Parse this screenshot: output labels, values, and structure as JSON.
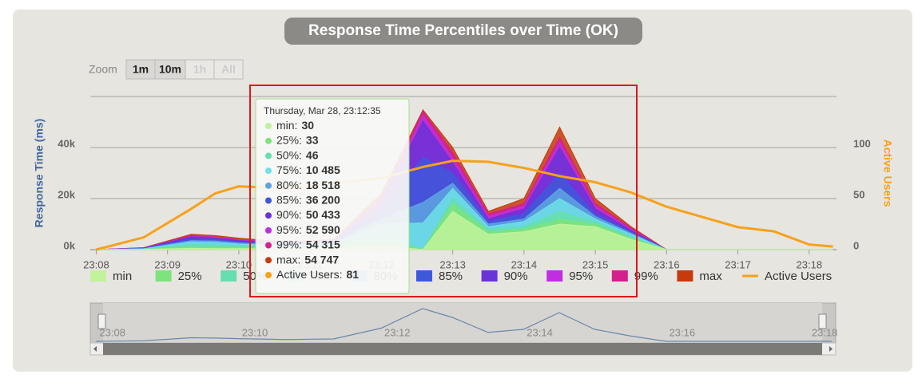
{
  "chart_data": {
    "type": "area",
    "title": "Response Time Percentiles over Time (OK)",
    "y_label": "Response Time (ms)",
    "y2_label": "Active Users",
    "x": [
      "23:08:00",
      "23:08:40",
      "23:09:20",
      "23:09:40",
      "23:10:00",
      "23:10:40",
      "23:11:20",
      "23:12:00",
      "23:12:35",
      "23:13:00",
      "23:13:30",
      "23:14:00",
      "23:14:30",
      "23:15:00",
      "23:15:30",
      "23:16:00",
      "23:16:30",
      "23:17:00",
      "23:17:30",
      "23:18:00",
      "23:18:20"
    ],
    "xlim": [
      "23:07:55",
      "23:18:23"
    ],
    "xticks": [
      "23:08",
      "23:09",
      "23:10",
      "23:11",
      "23:12",
      "23:13",
      "23:14",
      "23:15",
      "23:16",
      "23:17",
      "23:18"
    ],
    "ylim": [
      0,
      60000
    ],
    "yticks": [
      {
        "value": 0,
        "label": "0k"
      },
      {
        "value": 20000,
        "label": "20k"
      },
      {
        "value": 40000,
        "label": "40k"
      },
      60000
    ],
    "y2lim": [
      0,
      150
    ],
    "y2ticks": [
      0,
      50,
      100
    ],
    "grid": true,
    "series": [
      {
        "name": "min",
        "color": "#c2f39a",
        "values": [
          0,
          100,
          500,
          400,
          400,
          300,
          500,
          1500,
          30,
          15000,
          6000,
          7000,
          10000,
          9000,
          4000,
          0,
          0,
          0,
          0,
          0,
          0
        ]
      },
      {
        "name": "25%",
        "color": "#7de37c",
        "values": [
          0,
          150,
          1000,
          900,
          800,
          600,
          900,
          3000,
          33,
          18000,
          7000,
          8000,
          12000,
          10000,
          4500,
          0,
          0,
          0,
          0,
          0,
          0
        ]
      },
      {
        "name": "50%",
        "color": "#65dfae",
        "values": [
          0,
          200,
          2000,
          1800,
          1500,
          1000,
          1500,
          6000,
          46,
          20000,
          8000,
          9000,
          15000,
          11000,
          5000,
          0,
          0,
          0,
          0,
          0,
          0
        ]
      },
      {
        "name": "75%",
        "color": "#6ee0e6",
        "values": [
          0,
          300,
          3000,
          2800,
          2200,
          1500,
          2200,
          10000,
          10485,
          24000,
          9000,
          11000,
          20000,
          12000,
          6000,
          0,
          0,
          0,
          0,
          0,
          0
        ]
      },
      {
        "name": "80%",
        "color": "#5ea5df",
        "values": [
          0,
          400,
          3500,
          3400,
          2600,
          1800,
          2600,
          12000,
          18518,
          26000,
          10000,
          12000,
          24000,
          13000,
          6500,
          0,
          0,
          0,
          0,
          0,
          0
        ]
      },
      {
        "name": "85%",
        "color": "#3e58da",
        "values": [
          0,
          500,
          4200,
          4000,
          3000,
          2200,
          3000,
          15000,
          36200,
          30000,
          11000,
          14000,
          30000,
          14000,
          7000,
          0,
          0,
          0,
          0,
          0,
          0
        ]
      },
      {
        "name": "90%",
        "color": "#6a33d8",
        "values": [
          0,
          600,
          5000,
          4500,
          3500,
          2500,
          3400,
          18000,
          50433,
          34000,
          12000,
          16000,
          40000,
          16000,
          7500,
          0,
          0,
          0,
          0,
          0,
          0
        ]
      },
      {
        "name": "95%",
        "color": "#c02fdf",
        "values": [
          0,
          650,
          5200,
          4800,
          3800,
          2600,
          3600,
          19000,
          52590,
          36000,
          13000,
          17000,
          42000,
          17000,
          8000,
          0,
          0,
          0,
          0,
          0,
          0
        ]
      },
      {
        "name": "99%",
        "color": "#d3208e",
        "values": [
          0,
          700,
          5500,
          5000,
          4000,
          2800,
          3800,
          20000,
          54315,
          38000,
          14000,
          18000,
          44000,
          18000,
          8500,
          0,
          0,
          0,
          0,
          0,
          0
        ]
      },
      {
        "name": "max",
        "color": "#c53b0b",
        "values": [
          0,
          800,
          6000,
          5500,
          4500,
          3000,
          4000,
          22000,
          54747,
          40000,
          15000,
          20000,
          48000,
          20000,
          9000,
          0,
          0,
          0,
          0,
          0,
          0
        ]
      },
      {
        "name": "Active Users",
        "color": "#f7a11a",
        "axis": "y2",
        "values": [
          0,
          12,
          40,
          55,
          62,
          60,
          65,
          70,
          81,
          87,
          86,
          80,
          72,
          66,
          56,
          42,
          32,
          22,
          18,
          5,
          3
        ]
      }
    ]
  },
  "zoom": {
    "label": "Zoom",
    "buttons": [
      "1m",
      "10m",
      "1h",
      "All"
    ]
  },
  "tooltip": {
    "title": "Thursday, Mar 28, 23:12:35",
    "rows": [
      [
        "min:",
        "30"
      ],
      [
        "25%:",
        "33"
      ],
      [
        "50%:",
        "46"
      ],
      [
        "75%:",
        "10 485"
      ],
      [
        "80%:",
        "18 518"
      ],
      [
        "85%:",
        "36 200"
      ],
      [
        "90%:",
        "50 433"
      ],
      [
        "95%:",
        "52 590"
      ],
      [
        "99%:",
        "54 315"
      ],
      [
        "max:",
        "54 747"
      ],
      [
        "Active Users:",
        "81"
      ]
    ]
  },
  "navigator": {
    "ticks": [
      "23:08",
      "23:10",
      "23:12",
      "23:14",
      "23:16",
      "23:18"
    ]
  }
}
